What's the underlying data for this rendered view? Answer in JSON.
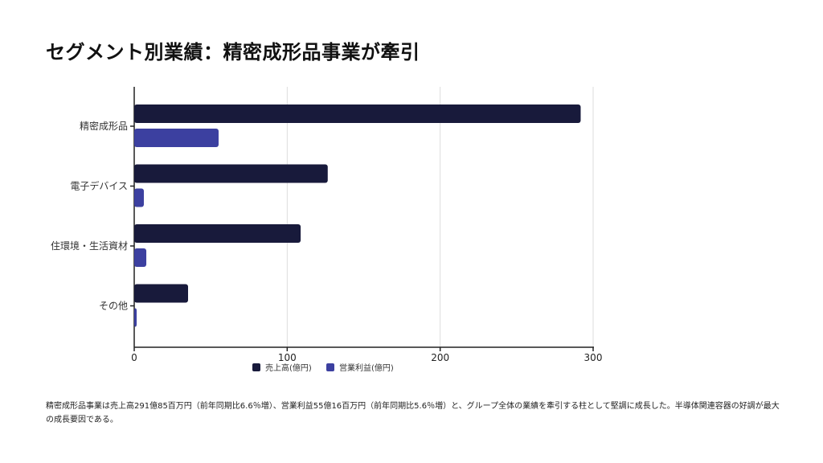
{
  "title": "セグメント別業績：精密成形品事業が牽引",
  "caption": "精密成形品事業は売上高291億85百万円（前年同期比6.6％増）、営業利益55億16百万円（前年同期比5.6％増）と、グループ全体の業績を牽引する柱として堅調に成長した。半導体関連容器の好調が最大の成長要因である。",
  "chart_data": {
    "type": "bar",
    "orientation": "horizontal",
    "categories": [
      "精密成形品",
      "電子デバイス",
      "住環境・生活資材",
      "その他"
    ],
    "series": [
      {
        "name": "売上高(億円)",
        "values": [
          291.85,
          126.5,
          108.8,
          35.2
        ],
        "color": "#181a3b"
      },
      {
        "name": "営業利益(億円)",
        "values": [
          55.16,
          6.3,
          7.9,
          1.6
        ],
        "color": "#3c40a0"
      }
    ],
    "xlim": [
      0,
      300
    ],
    "xticks": [
      "0",
      "100",
      "200",
      "300"
    ],
    "grid": true,
    "legend_position": "bottom"
  }
}
